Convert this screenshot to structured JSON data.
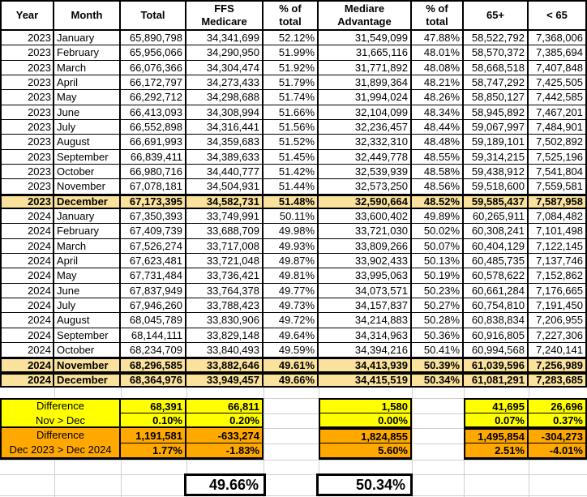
{
  "sheet": {
    "colors": {
      "highlight": "#FAE29C",
      "yellow": "#FFFF00",
      "orange": "#FFA800",
      "gridline": "#D0D0D0"
    },
    "columns": [
      "Year",
      "Month",
      "Total",
      "FFS\nMedicare",
      "% of\ntotal",
      "Mediare\nAdvantage",
      "% of\ntotal",
      "65+",
      "< 65"
    ],
    "rows": [
      {
        "year": "2023",
        "month": "January",
        "highlight": false,
        "values": [
          "65,890,798",
          "34,341,699",
          "52.12%",
          "31,549,099",
          "47.88%",
          "58,522,792",
          "7,368,006"
        ]
      },
      {
        "year": "2023",
        "month": "February",
        "highlight": false,
        "values": [
          "65,956,066",
          "34,290,950",
          "51.99%",
          "31,665,116",
          "48.01%",
          "58,570,372",
          "7,385,694"
        ]
      },
      {
        "year": "2023",
        "month": "March",
        "highlight": false,
        "values": [
          "66,076,366",
          "34,304,474",
          "51.92%",
          "31,771,892",
          "48.08%",
          "58,668,518",
          "7,407,848"
        ]
      },
      {
        "year": "2023",
        "month": "April",
        "highlight": false,
        "values": [
          "66,172,797",
          "34,273,433",
          "51.79%",
          "31,899,364",
          "48.21%",
          "58,747,292",
          "7,425,505"
        ]
      },
      {
        "year": "2023",
        "month": "May",
        "highlight": false,
        "values": [
          "66,292,712",
          "34,298,688",
          "51.74%",
          "31,994,024",
          "48.26%",
          "58,850,127",
          "7,442,585"
        ]
      },
      {
        "year": "2023",
        "month": "June",
        "highlight": false,
        "values": [
          "66,413,093",
          "34,308,994",
          "51.66%",
          "32,104,099",
          "48.34%",
          "58,945,892",
          "7,467,201"
        ]
      },
      {
        "year": "2023",
        "month": "July",
        "highlight": false,
        "values": [
          "66,552,898",
          "34,316,441",
          "51.56%",
          "32,236,457",
          "48.44%",
          "59,067,997",
          "7,484,901"
        ]
      },
      {
        "year": "2023",
        "month": "August",
        "highlight": false,
        "values": [
          "66,691,993",
          "34,359,683",
          "51.52%",
          "32,332,310",
          "48.48%",
          "59,189,101",
          "7,502,892"
        ]
      },
      {
        "year": "2023",
        "month": "September",
        "highlight": false,
        "values": [
          "66,839,411",
          "34,389,633",
          "51.45%",
          "32,449,778",
          "48.55%",
          "59,314,215",
          "7,525,196"
        ]
      },
      {
        "year": "2023",
        "month": "October",
        "highlight": false,
        "values": [
          "66,980,716",
          "34,440,777",
          "51.42%",
          "32,539,939",
          "48.58%",
          "59,438,912",
          "7,541,804"
        ]
      },
      {
        "year": "2023",
        "month": "November",
        "highlight": false,
        "values": [
          "67,078,181",
          "34,504,931",
          "51.44%",
          "32,573,250",
          "48.56%",
          "59,518,600",
          "7,559,581"
        ]
      },
      {
        "year": "2023",
        "month": "December",
        "highlight": true,
        "values": [
          "67,173,395",
          "34,582,731",
          "51.48%",
          "32,590,664",
          "48.52%",
          "59,585,437",
          "7,587,958"
        ]
      },
      {
        "year": "2024",
        "month": "January",
        "highlight": false,
        "values": [
          "67,350,393",
          "33,749,991",
          "50.11%",
          "33,600,402",
          "49.89%",
          "60,265,911",
          "7,084,482"
        ]
      },
      {
        "year": "2024",
        "month": "February",
        "highlight": false,
        "values": [
          "67,409,739",
          "33,688,709",
          "49.98%",
          "33,721,030",
          "50.02%",
          "60,308,241",
          "7,101,498"
        ]
      },
      {
        "year": "2024",
        "month": "March",
        "highlight": false,
        "values": [
          "67,526,274",
          "33,717,008",
          "49.93%",
          "33,809,266",
          "50.07%",
          "60,404,129",
          "7,122,145"
        ]
      },
      {
        "year": "2024",
        "month": "April",
        "highlight": false,
        "values": [
          "67,623,481",
          "33,721,048",
          "49.87%",
          "33,902,433",
          "50.13%",
          "60,485,735",
          "7,137,746"
        ]
      },
      {
        "year": "2024",
        "month": "May",
        "highlight": false,
        "values": [
          "67,731,484",
          "33,736,421",
          "49.81%",
          "33,995,063",
          "50.19%",
          "60,578,622",
          "7,152,862"
        ]
      },
      {
        "year": "2024",
        "month": "June",
        "highlight": false,
        "values": [
          "67,837,949",
          "33,764,378",
          "49.77%",
          "34,073,571",
          "50.23%",
          "60,661,284",
          "7,176,665"
        ]
      },
      {
        "year": "2024",
        "month": "July",
        "highlight": false,
        "values": [
          "67,946,260",
          "33,788,423",
          "49.73%",
          "34,157,837",
          "50.27%",
          "60,754,810",
          "7,191,450"
        ]
      },
      {
        "year": "2024",
        "month": "August",
        "highlight": false,
        "values": [
          "68,045,789",
          "33,830,906",
          "49.72%",
          "34,214,883",
          "50.28%",
          "60,838,834",
          "7,206,955"
        ]
      },
      {
        "year": "2024",
        "month": "September",
        "highlight": false,
        "values": [
          "68,144,111",
          "33,829,148",
          "49.64%",
          "34,314,963",
          "50.36%",
          "60,916,805",
          "7,227,306"
        ]
      },
      {
        "year": "2024",
        "month": "October",
        "highlight": false,
        "values": [
          "68,234,709",
          "33,840,493",
          "49.59%",
          "34,394,216",
          "50.41%",
          "60,994,568",
          "7,240,141"
        ]
      },
      {
        "year": "2024",
        "month": "November",
        "highlight": true,
        "values": [
          "68,296,585",
          "33,882,646",
          "49.61%",
          "34,413,939",
          "50.39%",
          "61,039,596",
          "7,256,989"
        ]
      },
      {
        "year": "2024",
        "month": "December",
        "highlight": true,
        "values": [
          "68,364,976",
          "33,949,457",
          "49.66%",
          "34,415,519",
          "50.34%",
          "61,081,291",
          "7,283,685"
        ]
      }
    ],
    "summary": {
      "nov_dec": {
        "label_line1": "Difference",
        "label_line2": "Nov > Dec",
        "total": [
          "68,391",
          "0.10%"
        ],
        "ffs": [
          "66,811",
          "0.20%"
        ],
        "ma": [
          "1,580",
          "0.00%"
        ],
        "over65": [
          "41,695",
          "0.07%"
        ],
        "under65": [
          "26,696",
          "0.37%"
        ]
      },
      "dec_dec": {
        "label_line1": "Difference",
        "label_line2": "Dec 2023 > Dec 2024",
        "total": [
          "1,191,581",
          "1.77%"
        ],
        "ffs": [
          "-633,274",
          "-1.83%"
        ],
        "ma": [
          "1,824,855",
          "5.60%"
        ],
        "over65": [
          "1,495,854",
          "2.51%"
        ],
        "under65": [
          "-304,273",
          "-4.01%"
        ]
      },
      "ffs_share": "49.66%",
      "ma_share": "50.34%"
    }
  }
}
